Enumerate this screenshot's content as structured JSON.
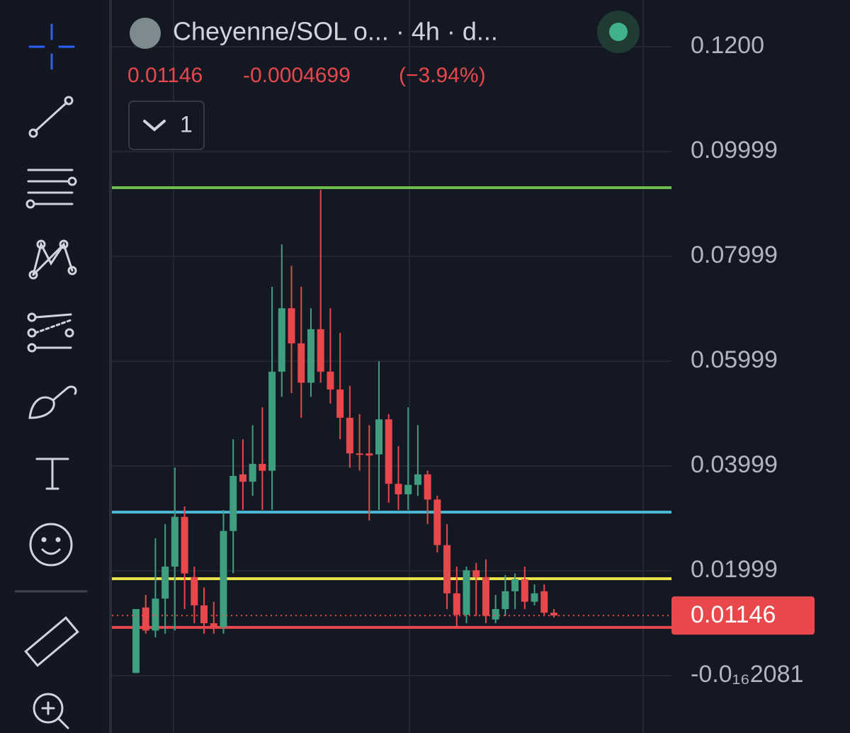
{
  "chart_data": {
    "type": "candlestick",
    "title": "Cheyenne/SOL o... · 4h · d...",
    "last_price": 0.01146,
    "change": -0.0004699,
    "change_percent": {
      "value": -3.94,
      "label": "(−3.94%)"
    },
    "collapsed_indicators": 1,
    "ylim": [
      -0.01095,
      0.12892
    ],
    "yticks": [
      {
        "value": -2.081e-17,
        "label": "-0.0₁₆2081"
      },
      0.01999,
      0.03999,
      0.05999,
      0.07999,
      0.09999,
      {
        "value": 0.12,
        "label": "0.1200"
      }
    ],
    "grid": true,
    "up_color": "#3f9e80",
    "down_color": "#e8474b",
    "open": [
      0.0005,
      0.013,
      0.0086,
      0.0147,
      0.0208,
      0.0303,
      0.0188,
      0.0134,
      0.01,
      0.0093,
      0.0276,
      0.0384,
      0.037,
      0.0404,
      0.0391,
      0.058,
      0.0701,
      0.0634,
      0.0559,
      0.0661,
      0.058,
      0.0546,
      0.0492,
      0.0424,
      0.0424,
      0.0422,
      0.0489,
      0.0366,
      0.0346,
      0.0364,
      0.0384,
      0.0336,
      0.0249,
      0.0157,
      0.0116,
      0.0201,
      0.0188,
      0.0107,
      0.0127,
      0.0161,
      0.0184,
      0.0141,
      0.0161,
      0.012
    ],
    "high": [
      0.0127,
      0.0154,
      0.0262,
      0.0289,
      0.0397,
      0.0323,
      0.0208,
      0.0168,
      0.0141,
      0.0316,
      0.0451,
      0.0451,
      0.0478,
      0.0512,
      0.0742,
      0.0823,
      0.0782,
      0.0742,
      0.0701,
      0.0927,
      0.0701,
      0.0654,
      0.0553,
      0.0499,
      0.0478,
      0.06,
      0.0499,
      0.0438,
      0.0512,
      0.0478,
      0.0391,
      0.0343,
      0.0289,
      0.0208,
      0.0208,
      0.0215,
      0.0222,
      0.0154,
      0.0192,
      0.0195,
      0.0208,
      0.0174,
      0.0174,
      0.0127
    ],
    "low": [
      0.0005,
      0.008,
      0.0073,
      0.008,
      0.0086,
      0.0127,
      0.01,
      0.008,
      0.008,
      0.008,
      0.0195,
      0.0316,
      0.0343,
      0.0316,
      0.0316,
      0.0532,
      0.0539,
      0.0492,
      0.0532,
      0.0559,
      0.0519,
      0.0451,
      0.0397,
      0.0391,
      0.0296,
      0.0316,
      0.033,
      0.0316,
      0.0316,
      0.0343,
      0.0289,
      0.0235,
      0.0127,
      0.0093,
      0.01,
      0.0114,
      0.01,
      0.01,
      0.0114,
      0.0127,
      0.0127,
      0.0134,
      0.0114,
      0.0111
    ],
    "close": [
      0.0127,
      0.0086,
      0.0147,
      0.0208,
      0.0303,
      0.0195,
      0.0134,
      0.01,
      0.0093,
      0.0276,
      0.0381,
      0.037,
      0.0404,
      0.0391,
      0.058,
      0.0701,
      0.0634,
      0.0559,
      0.0661,
      0.058,
      0.0546,
      0.0492,
      0.0424,
      0.0422,
      0.042,
      0.0489,
      0.0366,
      0.0346,
      0.0364,
      0.0384,
      0.0336,
      0.0249,
      0.0157,
      0.0116,
      0.0201,
      0.0188,
      0.0114,
      0.0127,
      0.0161,
      0.0184,
      0.0141,
      0.0157,
      0.012,
      0.01146
    ],
    "levels": [
      {
        "value": 0.0931,
        "color": "#6cbf4f"
      },
      {
        "value": 0.0312,
        "color": "#4cb8d4"
      },
      {
        "value": 0.0185,
        "color": "#f2e64d"
      },
      {
        "value": 0.0092,
        "color": "#e8474b"
      }
    ]
  }
}
